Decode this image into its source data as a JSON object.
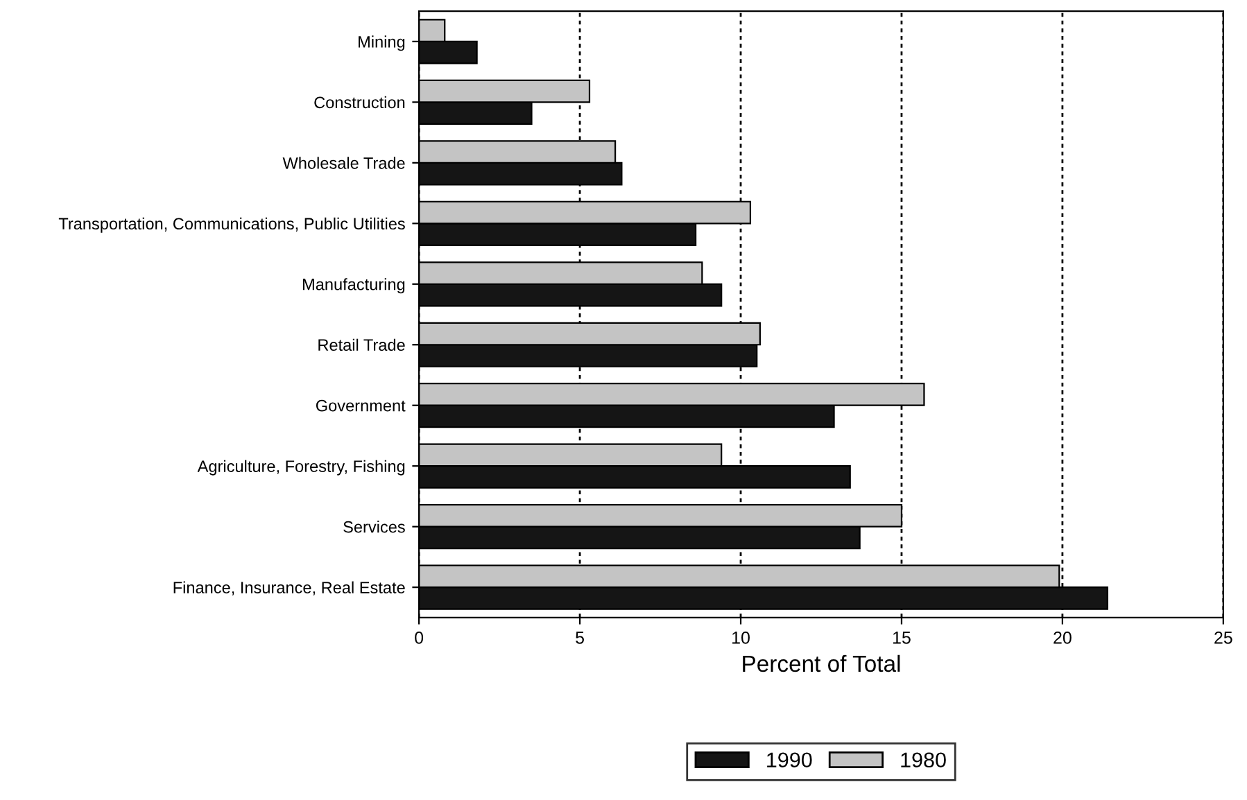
{
  "chart_data": {
    "type": "bar",
    "orientation": "horizontal",
    "xlabel": "Percent of Total",
    "categories": [
      "Mining",
      "Construction",
      "Wholesale Trade",
      "Transportation, Communications, Public Utilities",
      "Manufacturing",
      "Retail Trade",
      "Government",
      "Agriculture, Forestry, Fishing",
      "Services",
      "Finance, Insurance, Real Estate"
    ],
    "series": [
      {
        "name": "1990",
        "color": "#151515",
        "values": [
          1.8,
          3.5,
          6.3,
          8.6,
          9.4,
          10.5,
          12.9,
          13.4,
          13.7,
          21.4
        ]
      },
      {
        "name": "1980",
        "color": "#c4c4c4",
        "values": [
          0.8,
          5.3,
          6.1,
          10.3,
          8.8,
          10.6,
          15.7,
          9.4,
          15.0,
          19.9
        ]
      }
    ],
    "xlim": [
      0,
      25
    ],
    "xticks": [
      0,
      5,
      10,
      15,
      20,
      25
    ],
    "grid": "x",
    "legend": "bottom"
  }
}
